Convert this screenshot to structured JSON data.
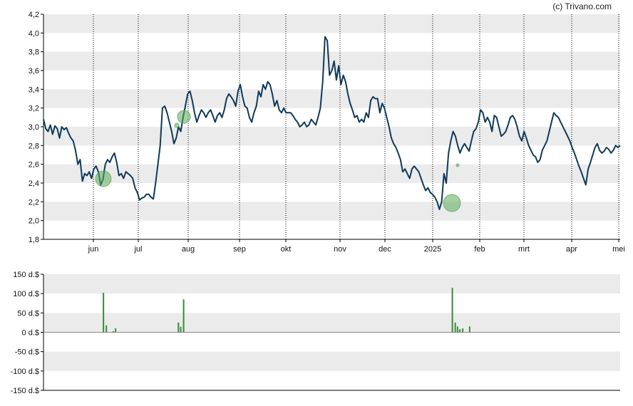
{
  "copyright": "(c) Trivano.com",
  "colors": {
    "line": "#0f3a5a",
    "band": "#ebebeb",
    "marker_fill": "#5aaa5a",
    "volume_bar": "#3a8a3a",
    "axis": "#000000",
    "grid": "#000000"
  },
  "chart_data": [
    {
      "type": "line",
      "name": "price",
      "ylim": [
        1.8,
        4.2
      ],
      "y_ticks": [
        "4,2",
        "4,0",
        "3,8",
        "3,6",
        "3,4",
        "3,2",
        "3,0",
        "2,8",
        "2,6",
        "2,4",
        "2,2",
        "2,0",
        "1,8"
      ],
      "x_tick_labels": [
        "jun",
        "jul",
        "aug",
        "sep",
        "okt",
        "nov",
        "dec",
        "2025",
        "feb",
        "mrt",
        "apr",
        "mei"
      ],
      "grid": "vertical dotted at month ticks, horizontal alternating bands",
      "series": [
        {
          "values": [
            3.08,
            2.98,
            2.95,
            3.02,
            2.92,
            3.01,
            2.98,
            2.88,
            3.0,
            2.97,
            2.99,
            2.93,
            2.88,
            2.85,
            2.75,
            2.6,
            2.65,
            2.42,
            2.5,
            2.48,
            2.52,
            2.45,
            2.55,
            2.58,
            2.52,
            2.38,
            2.44,
            2.6,
            2.65,
            2.62,
            2.68,
            2.72,
            2.62,
            2.48,
            2.5,
            2.45,
            2.52,
            2.5,
            2.48,
            2.45,
            2.35,
            2.3,
            2.22,
            2.24,
            2.25,
            2.28,
            2.28,
            2.25,
            2.23,
            2.4,
            2.6,
            2.8,
            3.2,
            3.22,
            3.15,
            3.05,
            2.95,
            2.82,
            2.88,
            3.0,
            2.95,
            3.1,
            3.22,
            3.35,
            3.38,
            3.28,
            3.15,
            3.05,
            3.12,
            3.18,
            3.15,
            3.1,
            3.15,
            3.18,
            3.12,
            3.05,
            3.12,
            3.15,
            3.1,
            3.18,
            3.3,
            3.35,
            3.32,
            3.28,
            3.22,
            3.38,
            3.45,
            3.32,
            3.22,
            3.2,
            3.1,
            3.05,
            3.15,
            3.22,
            3.38,
            3.32,
            3.45,
            3.4,
            3.48,
            3.45,
            3.35,
            3.22,
            3.28,
            3.18,
            3.15,
            3.2,
            3.15,
            3.15,
            3.15,
            3.12,
            3.08,
            3.05,
            3.0,
            3.02,
            3.05,
            3.0,
            3.02,
            3.08,
            3.05,
            3.02,
            3.1,
            3.2,
            3.48,
            3.96,
            3.92,
            3.55,
            3.6,
            3.7,
            3.5,
            3.65,
            3.45,
            3.55,
            3.48,
            3.35,
            3.25,
            3.18,
            3.1,
            3.12,
            3.05,
            3.08,
            3.05,
            3.15,
            3.1,
            3.28,
            3.32,
            3.3,
            3.3,
            3.15,
            3.25,
            3.2,
            3.1,
            3.0,
            2.88,
            2.82,
            2.78,
            2.72,
            2.65,
            2.52,
            2.55,
            2.5,
            2.45,
            2.55,
            2.58,
            2.55,
            2.52,
            2.45,
            2.38,
            2.32,
            2.35,
            2.3,
            2.28,
            2.25,
            2.2,
            2.12,
            2.2,
            2.5,
            2.4,
            2.72,
            2.85,
            2.95,
            2.9,
            2.8,
            2.72,
            2.78,
            2.82,
            2.78,
            2.74,
            2.85,
            2.95,
            2.98,
            3.05,
            3.18,
            3.15,
            3.05,
            3.1,
            3.05,
            2.95,
            3.12,
            3.1,
            3.0,
            2.9,
            2.92,
            2.95,
            3.02,
            3.1,
            3.12,
            3.08,
            3.0,
            2.9,
            2.85,
            2.95,
            2.88,
            2.8,
            2.75,
            2.7,
            2.68,
            2.62,
            2.65,
            2.75,
            2.8,
            2.85,
            2.95,
            3.05,
            3.15,
            3.12,
            3.1,
            3.05,
            3.0,
            2.95,
            2.9,
            2.85,
            2.78,
            2.72,
            2.65,
            2.58,
            2.52,
            2.45,
            2.38,
            2.55,
            2.62,
            2.7,
            2.78,
            2.82,
            2.75,
            2.72,
            2.74,
            2.78,
            2.76,
            2.72,
            2.75,
            2.8,
            2.78,
            2.8
          ]
        }
      ]
    },
    {
      "type": "bar",
      "name": "volume",
      "ylim": [
        -150,
        150
      ],
      "y_ticks": [
        "150 d.$",
        "100 d.$",
        "50 d.$",
        "0 d.$",
        "-50 d.$",
        "-100 d.$",
        "-150 d.$"
      ],
      "series": [
        {
          "values": [
            {
              "x": 0.104,
              "y": 102
            },
            {
              "x": 0.109,
              "y": 18
            },
            {
              "x": 0.121,
              "y": 3
            },
            {
              "x": 0.125,
              "y": 10
            },
            {
              "x": 0.234,
              "y": 25
            },
            {
              "x": 0.238,
              "y": 14
            },
            {
              "x": 0.243,
              "y": 85
            },
            {
              "x": 0.709,
              "y": 115
            },
            {
              "x": 0.714,
              "y": 25
            },
            {
              "x": 0.718,
              "y": 15
            },
            {
              "x": 0.722,
              "y": 8
            },
            {
              "x": 0.727,
              "y": 10
            },
            {
              "x": 0.739,
              "y": 15
            }
          ]
        }
      ]
    }
  ]
}
